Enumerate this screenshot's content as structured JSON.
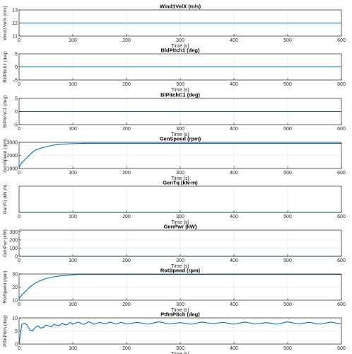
{
  "chart_data": [
    {
      "type": "line",
      "title": "Wind1VelX (m/s)",
      "xlabel": "Time (s)",
      "ylabel": "Wind1VelX (m/s)",
      "xlim": [
        0,
        600
      ],
      "ylim": [
        11,
        13
      ],
      "xticks": [
        0,
        100,
        200,
        300,
        400,
        500,
        600
      ],
      "yticks": [
        11,
        12,
        13
      ],
      "grid": true,
      "series": [
        {
          "x": [
            0,
            600
          ],
          "y": [
            12,
            12
          ]
        }
      ]
    },
    {
      "type": "line",
      "title": "BldPitch1 (deg)",
      "xlabel": "Time (s)",
      "ylabel": "BldPitch1 (deg)",
      "xlim": [
        0,
        600
      ],
      "ylim": [
        -5,
        5
      ],
      "xticks": [
        0,
        100,
        200,
        300,
        400,
        500,
        600
      ],
      "yticks": [
        -5,
        0,
        5
      ],
      "grid": true,
      "series": [
        {
          "x": [
            0,
            600
          ],
          "y": [
            0,
            0
          ]
        }
      ]
    },
    {
      "type": "line",
      "title": "BlPitchC1 (deg)",
      "xlabel": "Time (s)",
      "ylabel": "BlPitchC1 (deg)",
      "xlim": [
        0,
        600
      ],
      "ylim": [
        -5,
        5
      ],
      "xticks": [
        0,
        100,
        200,
        300,
        400,
        500,
        600
      ],
      "yticks": [
        -5,
        0,
        5
      ],
      "grid": true,
      "series": [
        {
          "x": [
            0,
            600
          ],
          "y": [
            0,
            0
          ]
        }
      ]
    },
    {
      "type": "line",
      "title": "GenSpeed (rpm)",
      "xlabel": "Time (s)",
      "ylabel": "GenSpeed (rpm)",
      "xlim": [
        0,
        600
      ],
      "ylim": [
        1000,
        3000
      ],
      "xticks": [
        0,
        100,
        200,
        300,
        400,
        500,
        600
      ],
      "yticks": [
        1000,
        2000,
        3000
      ],
      "grid": true,
      "series": [
        {
          "x": [
            0,
            5,
            10,
            15,
            20,
            25,
            30,
            40,
            50,
            60,
            70,
            80,
            90,
            100,
            110,
            120,
            150,
            200,
            300,
            400,
            500,
            600
          ],
          "y": [
            1100,
            1450,
            1650,
            1850,
            2050,
            2250,
            2400,
            2550,
            2650,
            2750,
            2820,
            2860,
            2880,
            2900,
            2910,
            2920,
            2920,
            2920,
            2920,
            2920,
            2920,
            2920
          ]
        }
      ]
    },
    {
      "type": "line",
      "title": "GenTq (kN·m)",
      "xlabel": "Time (s)",
      "ylabel": "GenTq (kN·m)",
      "xlim": [
        0,
        600
      ],
      "ylim": [
        0,
        1
      ],
      "xticks": [
        0,
        100,
        200,
        300,
        400,
        500,
        600
      ],
      "yticks": [],
      "grid": true,
      "series": [
        {
          "x": [
            0,
            600
          ],
          "y": [
            0,
            0
          ]
        }
      ]
    },
    {
      "type": "line",
      "title": "GenPwr (kW)",
      "xlabel": "Time (s)",
      "ylabel": "GenPwr (kW)",
      "xlim": [
        0,
        600
      ],
      "ylim": [
        0,
        320
      ],
      "xticks": [
        0,
        100,
        200,
        300,
        400,
        500,
        600
      ],
      "yticks": [
        0,
        100,
        200,
        300
      ],
      "grid": true,
      "series": [
        {
          "x": [
            0,
            600
          ],
          "y": [
            0,
            0
          ]
        }
      ]
    },
    {
      "type": "line",
      "title": "RotSpeed (rpm)",
      "xlabel": "Time (s)",
      "ylabel": "RotSpeed (rpm)",
      "xlim": [
        0,
        600
      ],
      "ylim": [
        10,
        30
      ],
      "xticks": [
        0,
        100,
        200,
        300,
        400,
        500,
        600
      ],
      "yticks": [
        10,
        20,
        30
      ],
      "grid": true,
      "series": [
        {
          "x": [
            0,
            5,
            10,
            15,
            20,
            25,
            30,
            40,
            50,
            60,
            70,
            80,
            90,
            100,
            110,
            120,
            150,
            200,
            300,
            400,
            500,
            600
          ],
          "y": [
            11.5,
            14,
            16,
            18,
            20,
            21.5,
            23,
            25,
            26.5,
            27.5,
            28.2,
            28.7,
            29.1,
            29.4,
            29.6,
            29.7,
            29.7,
            29.7,
            29.7,
            29.7,
            29.7,
            29.7
          ]
        }
      ]
    },
    {
      "type": "line",
      "title": "PtfmPitch (deg)",
      "xlabel": "Time (s)",
      "ylabel": "PtfmPitch (deg)",
      "xlim": [
        0,
        600
      ],
      "ylim": [
        0,
        10
      ],
      "xticks": [
        0,
        100,
        200,
        300,
        400,
        500,
        600
      ],
      "yticks": [
        0,
        5,
        10
      ],
      "grid": true,
      "series": [
        {
          "x": [
            0,
            5,
            10,
            15,
            20,
            25,
            30,
            35,
            40,
            45,
            50,
            55,
            60,
            65,
            70,
            75,
            80,
            85,
            90,
            95,
            100,
            110,
            120,
            130,
            140,
            150,
            160,
            170,
            180,
            190,
            200,
            220,
            240,
            260,
            280,
            300,
            320,
            340,
            360,
            380,
            400,
            420,
            440,
            460,
            480,
            500,
            520,
            540,
            560,
            580,
            600
          ],
          "y": [
            0.2,
            7.5,
            8.0,
            7.3,
            5.4,
            5.0,
            6.3,
            7.0,
            6.1,
            6.3,
            7.3,
            6.9,
            6.6,
            7.6,
            7.2,
            7.0,
            8.0,
            7.4,
            7.5,
            8.3,
            7.6,
            8.4,
            7.5,
            8.5,
            7.6,
            8.3,
            7.7,
            8.4,
            7.6,
            8.3,
            7.7,
            8.3,
            7.6,
            8.5,
            7.7,
            8.2,
            7.6,
            8.4,
            7.8,
            8.3,
            7.6,
            8.4,
            7.7,
            8.2,
            7.6,
            8.5,
            7.7,
            8.3,
            7.6,
            8.4,
            7.7
          ]
        }
      ]
    }
  ]
}
